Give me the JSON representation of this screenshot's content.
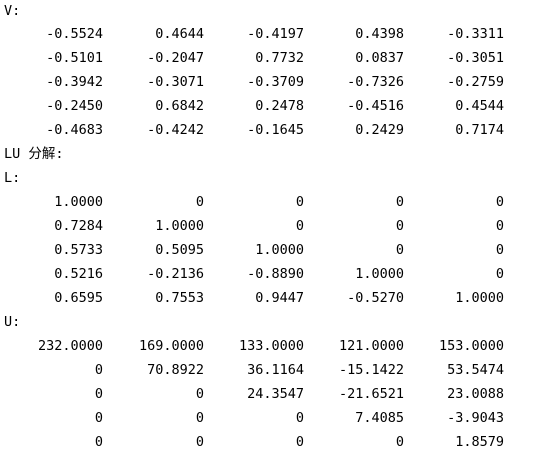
{
  "output": {
    "v_label": "V:",
    "v_rows": [
      [
        "-0.5524",
        "0.4644",
        "-0.4197",
        "0.4398",
        "-0.3311"
      ],
      [
        "-0.5101",
        "-0.2047",
        "0.7732",
        "0.0837",
        "-0.3051"
      ],
      [
        "-0.3942",
        "-0.3071",
        "-0.3709",
        "-0.7326",
        "-0.2759"
      ],
      [
        "-0.2450",
        "0.6842",
        "0.2478",
        "-0.4516",
        "0.4544"
      ],
      [
        "-0.4683",
        "-0.4242",
        "-0.1645",
        "0.2429",
        "0.7174"
      ]
    ],
    "lu_heading": "LU 分解:",
    "l_label": "L:",
    "l_rows": [
      [
        "1.0000",
        "0",
        "0",
        "0",
        "0"
      ],
      [
        "0.7284",
        "1.0000",
        "0",
        "0",
        "0"
      ],
      [
        "0.5733",
        "0.5095",
        "1.0000",
        "0",
        "0"
      ],
      [
        "0.5216",
        "-0.2136",
        "-0.8890",
        "1.0000",
        "0"
      ],
      [
        "0.6595",
        "0.7553",
        "0.9447",
        "-0.5270",
        "1.0000"
      ]
    ],
    "u_label": "U:",
    "u_rows": [
      [
        "232.0000",
        "169.0000",
        "133.0000",
        "121.0000",
        "153.0000"
      ],
      [
        "0",
        "70.8922",
        "36.1164",
        "-15.1422",
        "53.5474"
      ],
      [
        "0",
        "0",
        "24.3547",
        "-21.6521",
        "23.0088"
      ],
      [
        "0",
        "0",
        "0",
        "7.4085",
        "-3.9043"
      ],
      [
        "0",
        "0",
        "0",
        "0",
        "1.8579"
      ]
    ]
  }
}
